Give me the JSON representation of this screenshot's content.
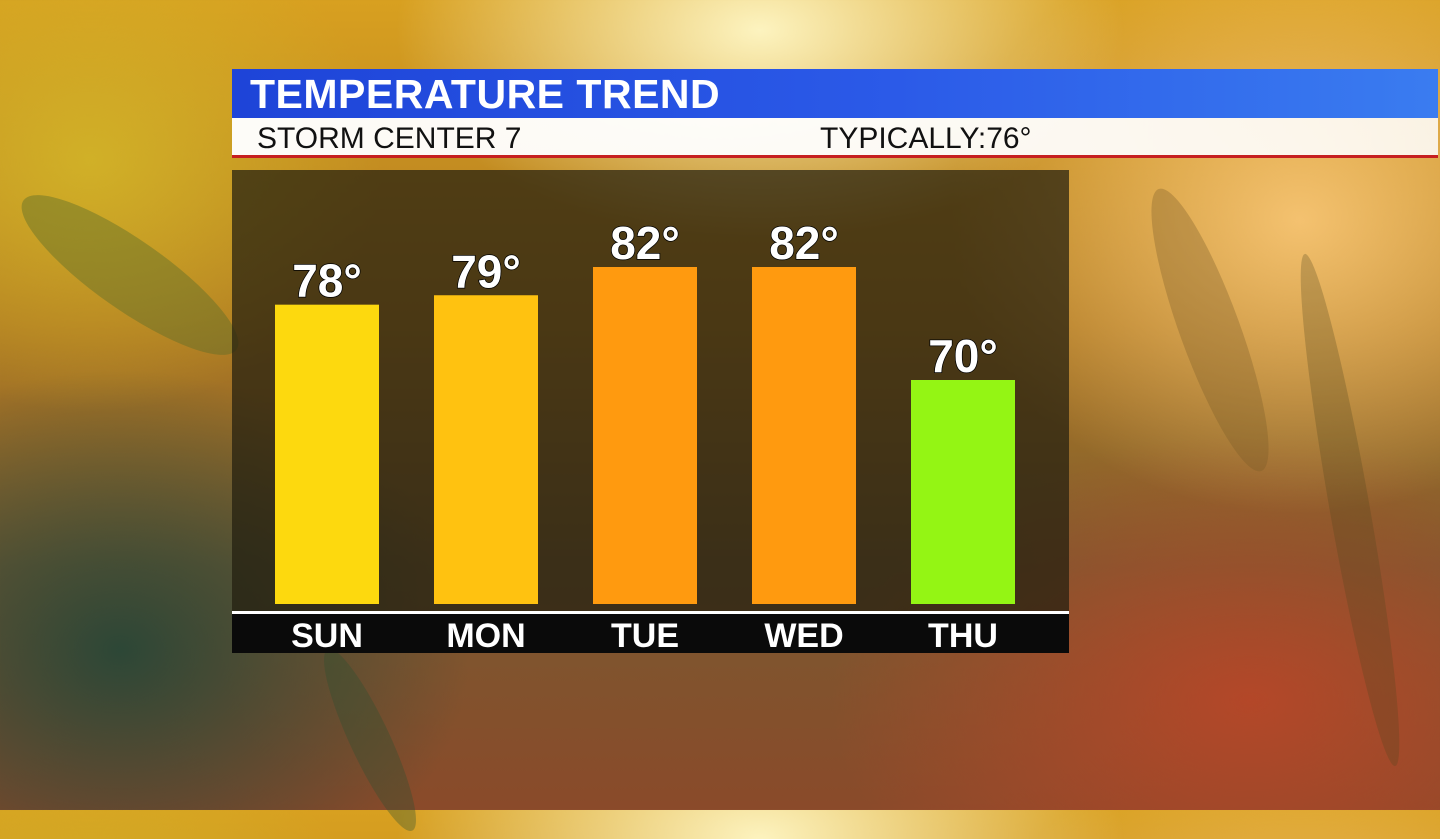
{
  "header": {
    "title": "TEMPERATURE TREND",
    "station": "STORM CENTER 7",
    "typical_label": "TYPICALLY:",
    "typical_value": "76°"
  },
  "colors": {
    "title_bar": "#1e44d8",
    "warm": "#fdd90e",
    "hot": "#ff9a0f",
    "cool": "#94f514"
  },
  "chart_data": {
    "type": "bar",
    "categories": [
      "SUN",
      "MON",
      "TUE",
      "WED",
      "THU"
    ],
    "values": [
      78,
      79,
      82,
      82,
      70
    ],
    "labels": [
      "78°",
      "79°",
      "82°",
      "82°",
      "70°"
    ],
    "bar_colors": [
      "#fdd90e",
      "#ffc210",
      "#ff9a0f",
      "#ff9a0f",
      "#94f514"
    ],
    "title": "TEMPERATURE TREND",
    "xlabel": "",
    "ylabel": ""
  }
}
